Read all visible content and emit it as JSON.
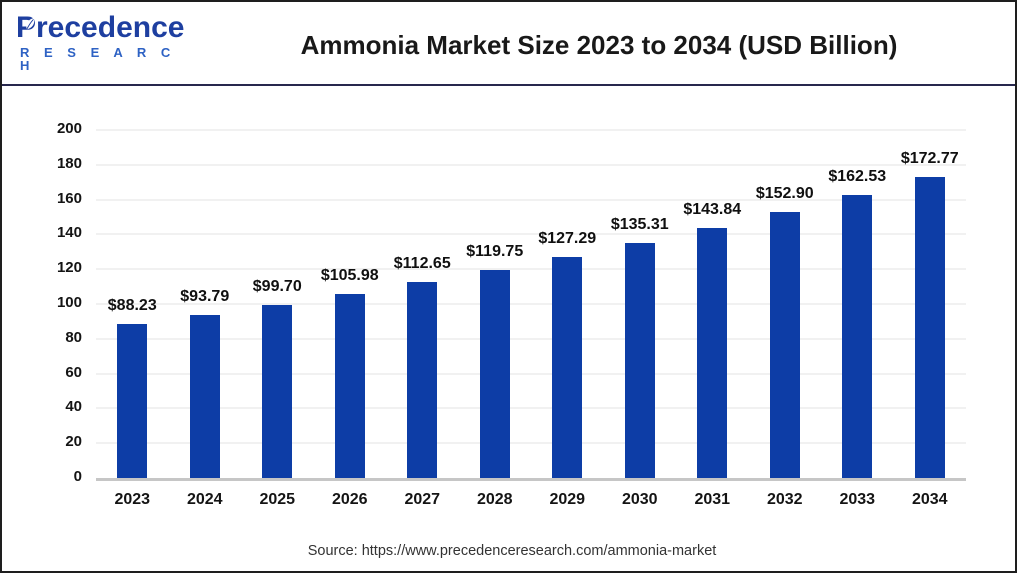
{
  "header": {
    "logo": {
      "brand": "Precedence",
      "sub": "R E S E A R C H"
    },
    "title": "Ammonia Market Size 2023 to 2034 (USD Billion)"
  },
  "chart_data": {
    "type": "bar",
    "title": "Ammonia Market Size 2023 to 2034 (USD Billion)",
    "categories": [
      "2023",
      "2024",
      "2025",
      "2026",
      "2027",
      "2028",
      "2029",
      "2030",
      "2031",
      "2032",
      "2033",
      "2034"
    ],
    "values": [
      88.23,
      93.79,
      99.7,
      105.98,
      112.65,
      119.75,
      127.29,
      135.31,
      143.84,
      152.9,
      162.53,
      172.77
    ],
    "value_labels": [
      "$88.23",
      "$93.79",
      "$99.70",
      "$105.98",
      "$112.65",
      "$119.75",
      "$127.29",
      "$135.31",
      "$143.84",
      "$152.90",
      "$162.53",
      "$172.77"
    ],
    "unit": "USD Billion",
    "xlabel": "",
    "ylabel": "",
    "ylim": [
      0,
      200
    ],
    "y_ticks": [
      0,
      20,
      40,
      60,
      80,
      100,
      120,
      140,
      160,
      180,
      200
    ],
    "grid": "horizontal",
    "legend": "none",
    "bar_color": "#0d3da6",
    "axis_line_color": "#c6c6c6",
    "gridline_color": "#f1f1f1"
  },
  "footer": {
    "source": "Source: https://www.precedenceresearch.com/ammonia-market"
  },
  "colors": {
    "brand_navy": "#1e3fa0",
    "brand_blue": "#2e62c4",
    "header_rule": "#28284e",
    "frame": "#1e1e1e"
  }
}
